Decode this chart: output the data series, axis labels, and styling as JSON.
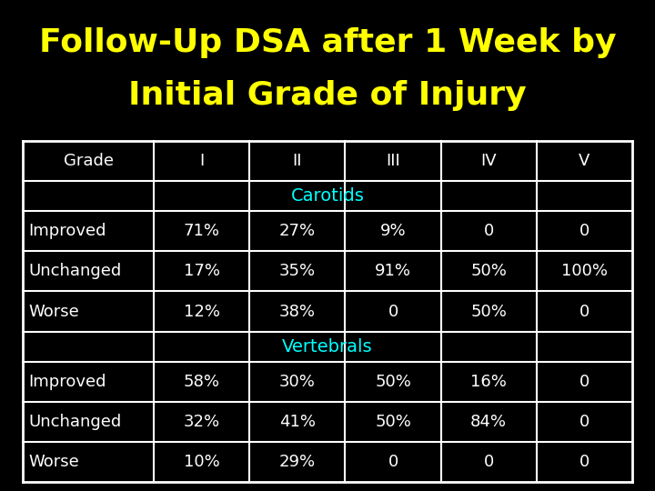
{
  "title_line1": "Follow-Up DSA after 1 Week by",
  "title_line2": "Initial Grade of Injury",
  "title_color": "#FFFF00",
  "background_color": "#000000",
  "border_color": "#FFFFFF",
  "header_text_color": "#FFFFFF",
  "section_text_color": "#00FFFF",
  "cell_text_color": "#FFFFFF",
  "col_headers": [
    "Grade",
    "I",
    "II",
    "III",
    "IV",
    "V"
  ],
  "carotids_label": "Carotids",
  "vertebrals_label": "Vertebrals",
  "carotids_rows": [
    [
      "Improved",
      "71%",
      "27%",
      "9%",
      "0",
      "0"
    ],
    [
      "Unchanged",
      "17%",
      "35%",
      "91%",
      "50%",
      "100%"
    ],
    [
      "Worse",
      "12%",
      "38%",
      "0",
      "50%",
      "0"
    ]
  ],
  "vertebrals_rows": [
    [
      "Improved",
      "58%",
      "30%",
      "50%",
      "16%",
      "0"
    ],
    [
      "Unchanged",
      "32%",
      "41%",
      "50%",
      "84%",
      "0"
    ],
    [
      "Worse",
      "10%",
      "29%",
      "0",
      "0",
      "0"
    ]
  ],
  "title_fontsize": 26,
  "header_fontsize": 13,
  "section_fontsize": 14,
  "cell_fontsize": 13
}
